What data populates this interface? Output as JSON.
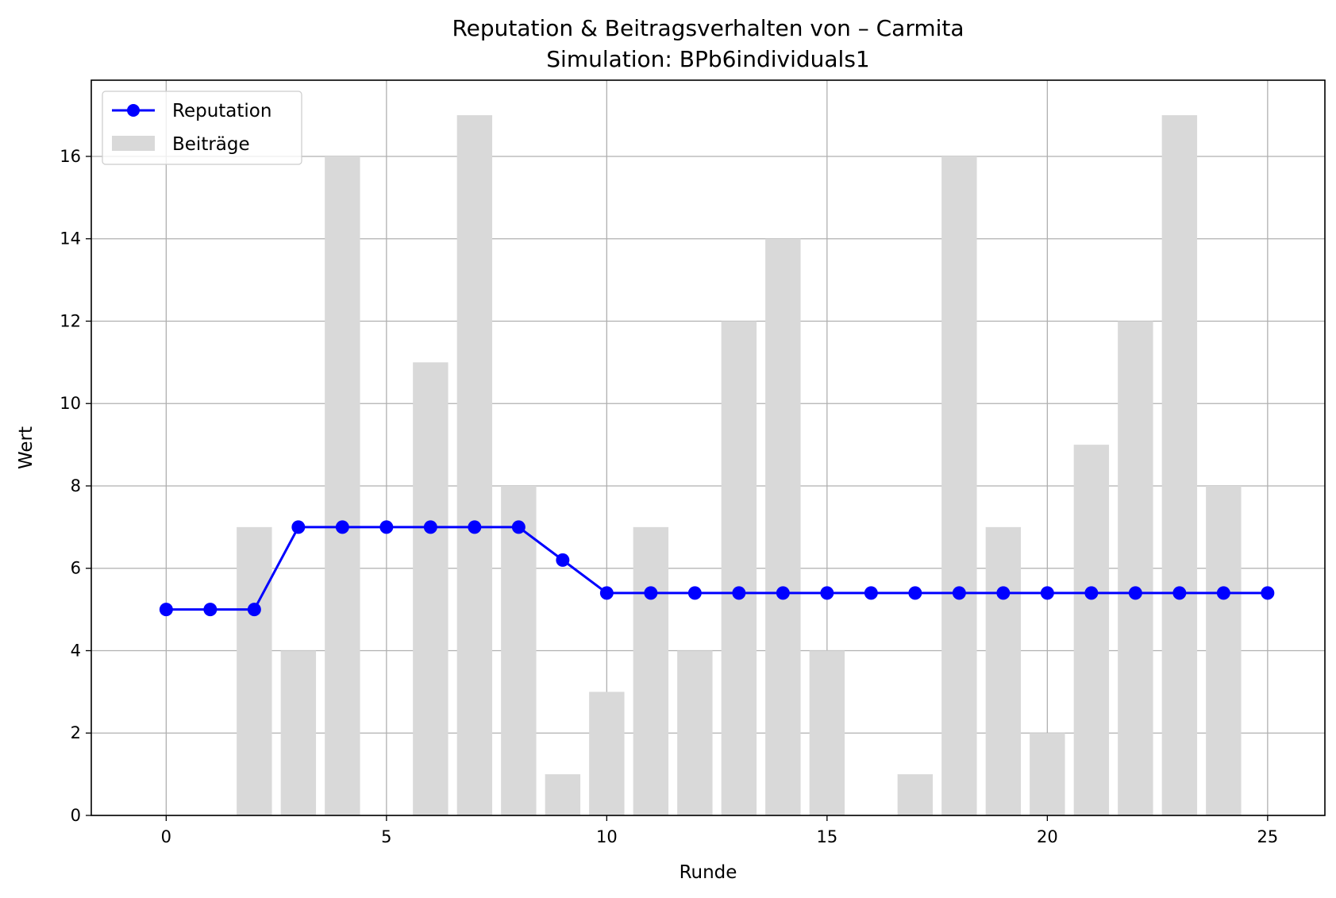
{
  "chart_data": {
    "type": "bar+line",
    "title": "Reputation & Beitragsverhalten von – Carmita",
    "subtitle": "Simulation: BPb6individuals1",
    "xlabel": "Runde",
    "ylabel": "Wert",
    "xlim": [
      -1.7,
      26.3
    ],
    "ylim": [
      0,
      17.85
    ],
    "xticks": [
      0,
      5,
      10,
      15,
      20,
      25
    ],
    "yticks": [
      0,
      2,
      4,
      6,
      8,
      10,
      12,
      14,
      16
    ],
    "grid": true,
    "legend_position": "top-left",
    "x": [
      0,
      1,
      2,
      3,
      4,
      5,
      6,
      7,
      8,
      9,
      10,
      11,
      12,
      13,
      14,
      15,
      16,
      17,
      18,
      19,
      20,
      21,
      22,
      23,
      24,
      25
    ],
    "series": [
      {
        "name": "Reputation",
        "kind": "line",
        "color": "#0000ff",
        "values": [
          5,
          5,
          5,
          7,
          7,
          7,
          7,
          7,
          7,
          6.2,
          5.4,
          5.4,
          5.4,
          5.4,
          5.4,
          5.4,
          5.4,
          5.4,
          5.4,
          5.4,
          5.4,
          5.4,
          5.4,
          5.4,
          5.4,
          5.4
        ]
      },
      {
        "name": "Beiträge",
        "kind": "bar",
        "color": "#d9d9d9",
        "values": [
          0,
          0,
          7,
          4,
          16,
          0,
          11,
          17,
          8,
          1,
          3,
          7,
          4,
          12,
          14,
          4,
          0,
          1,
          16,
          7,
          2,
          9,
          12,
          17,
          8,
          0
        ]
      }
    ]
  }
}
